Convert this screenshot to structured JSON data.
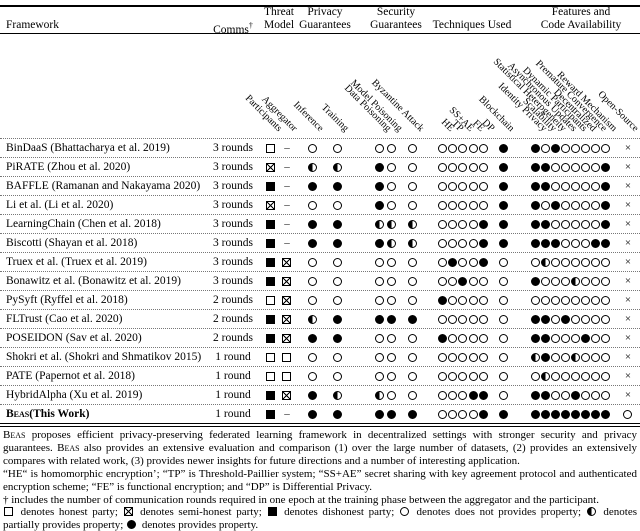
{
  "table": {
    "header_groups": [
      {
        "id": "framework",
        "label": "Framework"
      },
      {
        "id": "comms",
        "label": "Comms",
        "sup": "†"
      },
      {
        "id": "threat",
        "line1": "Threat",
        "line2": "Model"
      },
      {
        "id": "privacy",
        "line1": "Privacy",
        "line2": "Guarantees"
      },
      {
        "id": "security",
        "line1": "Security",
        "line2": "Guarantees"
      },
      {
        "id": "techniques",
        "label": "Techniques Used"
      },
      {
        "id": "features",
        "line1": "Features and",
        "line2": "Code Availability"
      }
    ],
    "columns": [
      {
        "key": "participants",
        "label": "Participants",
        "group": "threat"
      },
      {
        "key": "aggregator",
        "label": "Aggregator",
        "group": "threat"
      },
      {
        "key": "inference",
        "label": "Inference",
        "group": "privacy"
      },
      {
        "key": "training",
        "label": "Training",
        "group": "privacy"
      },
      {
        "key": "data_poisoning",
        "label": "Data Poisoning",
        "group": "security"
      },
      {
        "key": "model_poisoning",
        "label": "Model Poisoning",
        "group": "security"
      },
      {
        "key": "byzantine",
        "label": "Byzantine Attack",
        "group": "security"
      },
      {
        "key": "he",
        "label": "HE",
        "group": "techniques"
      },
      {
        "key": "tp",
        "label": "TP",
        "group": "techniques"
      },
      {
        "key": "ssae",
        "label": "SS+AE",
        "group": "techniques"
      },
      {
        "key": "fe",
        "label": "FE",
        "group": "techniques"
      },
      {
        "key": "dp",
        "label": "DP",
        "group": "techniques"
      },
      {
        "key": "blockchain",
        "label": "Blockchain",
        "group": "techniques"
      },
      {
        "key": "identity_privacy",
        "label": "Identity Privacy",
        "group": "features"
      },
      {
        "key": "scalability",
        "label": "Scalability",
        "group": "features"
      },
      {
        "key": "stat_heterogeneity",
        "label": "Statistical Heterogeneity",
        "group": "features"
      },
      {
        "key": "async_updates",
        "label": "Asynchronous Updates",
        "group": "features"
      },
      {
        "key": "dynamic_participants",
        "label": "Dynamic Participants",
        "group": "features"
      },
      {
        "key": "decentralized",
        "label": "Decentralized",
        "group": "features"
      },
      {
        "key": "premature_convergence",
        "label": "Premature Convergence",
        "group": "features"
      },
      {
        "key": "reward_mechanism",
        "label": "Reward Mechanism",
        "group": "features"
      },
      {
        "key": "open_source",
        "label": "Open-Source",
        "group": "features"
      }
    ],
    "rows": [
      {
        "framework": "BinDaaS (Bhattacharya et al. 2019)",
        "comms": "3 rounds",
        "symbols": [
          "sq_empty",
          "dash",
          "c0",
          "c0",
          "c0",
          "c0",
          "c0",
          "c0",
          "c0",
          "c0",
          "c0",
          "c0",
          "c100",
          "c100",
          "c0",
          "c100",
          "c0",
          "c0",
          "c0",
          "c0",
          "c0",
          "x"
        ]
      },
      {
        "framework": "PiRATE (Zhou et al. 2020)",
        "comms": "3 rounds",
        "symbols": [
          "sq_cross",
          "dash",
          "c50",
          "c50",
          "c100",
          "c0",
          "c0",
          "c0",
          "c0",
          "c0",
          "c0",
          "c0",
          "c100",
          "c100",
          "c100",
          "c0",
          "c0",
          "c0",
          "c0",
          "c0",
          "c100",
          "x"
        ]
      },
      {
        "framework": "BAFFLE (Ramanan and Nakayama 2020)",
        "comms": "3 rounds",
        "symbols": [
          "sq_filled",
          "dash",
          "c100",
          "c100",
          "c100",
          "c0",
          "c0",
          "c0",
          "c0",
          "c0",
          "c0",
          "c0",
          "c100",
          "c100",
          "c100",
          "c0",
          "c0",
          "c0",
          "c0",
          "c0",
          "c100",
          "x"
        ]
      },
      {
        "framework": "Li et al. (Li et al. 2020)",
        "comms": "3 rounds",
        "symbols": [
          "sq_cross",
          "dash",
          "c0",
          "c0",
          "c100",
          "c0",
          "c0",
          "c0",
          "c0",
          "c0",
          "c0",
          "c0",
          "c100",
          "c100",
          "c0",
          "c100",
          "c0",
          "c0",
          "c0",
          "c0",
          "c100",
          "x"
        ]
      },
      {
        "framework": "LearningChain (Chen et al. 2018)",
        "comms": "3 rounds",
        "symbols": [
          "sq_filled",
          "dash",
          "c100",
          "c100",
          "c50",
          "c50",
          "c50",
          "c0",
          "c0",
          "c0",
          "c0",
          "c100",
          "c100",
          "c100",
          "c100",
          "c0",
          "c0",
          "c0",
          "c0",
          "c0",
          "c100",
          "x"
        ]
      },
      {
        "framework": "Biscotti (Shayan et al. 2018)",
        "comms": "3 rounds",
        "symbols": [
          "sq_filled",
          "dash",
          "c100",
          "c100",
          "c100",
          "c50",
          "c50",
          "c0",
          "c0",
          "c0",
          "c0",
          "c100",
          "c100",
          "c100",
          "c100",
          "c100",
          "c0",
          "c0",
          "c0",
          "c100",
          "c100",
          "x"
        ]
      },
      {
        "framework": "Truex et al. (Truex et al. 2019)",
        "comms": "3 rounds",
        "symbols": [
          "sq_filled",
          "sq_cross",
          "c0",
          "c0",
          "c0",
          "c0",
          "c0",
          "c0",
          "c100",
          "c0",
          "c0",
          "c100",
          "c0",
          "c0",
          "c50",
          "c0",
          "c0",
          "c0",
          "c0",
          "c0",
          "c0",
          "x"
        ]
      },
      {
        "framework": "Bonawitz et al. (Bonawitz et al. 2019)",
        "comms": "3 rounds",
        "symbols": [
          "sq_filled",
          "sq_cross",
          "c0",
          "c0",
          "c0",
          "c0",
          "c0",
          "c0",
          "c0",
          "c100",
          "c0",
          "c0",
          "c0",
          "c100",
          "c0",
          "c0",
          "c0",
          "c50",
          "c0",
          "c0",
          "c0",
          "x"
        ]
      },
      {
        "framework": "PySyft (Ryffel et al. 2018)",
        "comms": "2 rounds",
        "symbols": [
          "sq_empty",
          "sq_cross",
          "c0",
          "c0",
          "c0",
          "c0",
          "c0",
          "c100",
          "c0",
          "c0",
          "c0",
          "c0",
          "c0",
          "c0",
          "c0",
          "c0",
          "c0",
          "c0",
          "c0",
          "c0",
          "c0",
          "x"
        ]
      },
      {
        "framework": "FLTrust (Cao et al. 2020)",
        "comms": "2 rounds",
        "symbols": [
          "sq_filled",
          "sq_cross",
          "c50",
          "c100",
          "c100",
          "c100",
          "c100",
          "c0",
          "c0",
          "c0",
          "c0",
          "c0",
          "c0",
          "c100",
          "c100",
          "c0",
          "c100",
          "c0",
          "c0",
          "c0",
          "c0",
          "x"
        ]
      },
      {
        "framework": "POSEIDON (Sav et al. 2020)",
        "comms": "2 rounds",
        "symbols": [
          "sq_filled",
          "sq_cross",
          "c100",
          "c100",
          "c0",
          "c0",
          "c0",
          "c100",
          "c0",
          "c0",
          "c0",
          "c0",
          "c0",
          "c100",
          "c100",
          "c0",
          "c0",
          "c0",
          "c100",
          "c0",
          "c0",
          "x"
        ]
      },
      {
        "framework": "Shokri et al. (Shokri and Shmatikov 2015)",
        "comms": "1 round",
        "symbols": [
          "sq_empty",
          "sq_empty",
          "c0",
          "c0",
          "c0",
          "c0",
          "c0",
          "c0",
          "c0",
          "c0",
          "c0",
          "c0",
          "c0",
          "c50",
          "c100",
          "c0",
          "c0",
          "c50",
          "c0",
          "c0",
          "c0",
          "x"
        ]
      },
      {
        "framework": "PATE (Papernot et al. 2018)",
        "comms": "1 round",
        "symbols": [
          "sq_empty",
          "sq_empty",
          "c0",
          "c0",
          "c0",
          "c0",
          "c0",
          "c0",
          "c0",
          "c0",
          "c0",
          "c0",
          "c0",
          "c0",
          "c50",
          "c0",
          "c0",
          "c0",
          "c0",
          "c0",
          "c0",
          "x"
        ]
      },
      {
        "framework": "HybridAlpha (Xu et al. 2019)",
        "comms": "1 round",
        "symbols": [
          "sq_filled",
          "sq_cross",
          "c100",
          "c50",
          "c50",
          "c0",
          "c0",
          "c0",
          "c0",
          "c0",
          "c100",
          "c100",
          "c0",
          "c100",
          "c100",
          "c0",
          "c0",
          "c100",
          "c0",
          "c0",
          "c0",
          "x"
        ]
      },
      {
        "framework_sc": "Beas",
        "framework_rest": "(This Work)",
        "bold": true,
        "comms": "1 round",
        "symbols": [
          "sq_filled",
          "dash",
          "c100",
          "c100",
          "c100",
          "c100",
          "c100",
          "c0",
          "c0",
          "c0",
          "c0",
          "c100",
          "c100",
          "c100",
          "c100",
          "c100",
          "c100",
          "c100",
          "c100",
          "c100",
          "c100",
          "check"
        ]
      }
    ]
  },
  "footnotes": [
    {
      "segments": [
        {
          "sc": "Beas"
        },
        {
          "t": " proposes efficient privacy-preserving federated learning framework in decentralized settings with stronger security and privacy guarantees. "
        },
        {
          "sc": "Beas"
        },
        {
          "t": " also provides an extensive evaluation and comparison (1) over the large number of datasets, (2) provides an extensively compares with related work, (3) provides newer insights for future directions and a number of interesting application."
        }
      ]
    },
    {
      "segments": [
        {
          "t": "“HE“ is homomorphic encryption’; “TP” is Threshold-Paillier system; “SS+AE” secret sharing with key agreement protocol and authenticated encryption scheme; “FE” is functional encryption; and “DP” is Differential Privacy."
        }
      ]
    },
    {
      "segments": [
        {
          "t": "† includes the number of communication rounds required in one epoch at the training phase between the aggregator and the participant."
        }
      ]
    },
    {
      "legend": true
    }
  ],
  "legend": {
    "items": [
      {
        "symbol": "sq_empty",
        "text": "denotes honest party;"
      },
      {
        "symbol": "sq_cross",
        "text": "denotes semi-honest party;"
      },
      {
        "symbol": "sq_filled",
        "text": "denotes dishonest party;"
      },
      {
        "symbol": "c0",
        "text": "denotes does not provides property;"
      },
      {
        "symbol": "c50",
        "text": "denotes partially provides property;"
      },
      {
        "symbol": "c100",
        "text": "denotes provides property."
      }
    ]
  }
}
